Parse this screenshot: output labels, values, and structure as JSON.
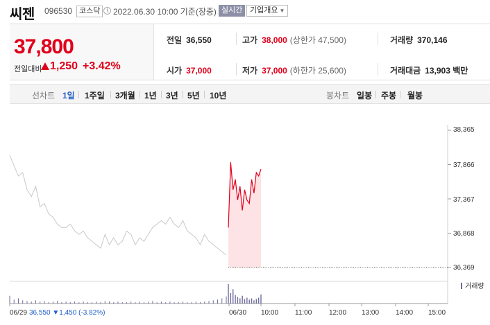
{
  "header": {
    "name": "씨젠",
    "code": "096530",
    "market": "코스닥",
    "timestamp": "2022.06.30 10:00 기준(장중)",
    "realtime_label": "실시간",
    "company_info_label": "기업개요"
  },
  "price": {
    "current": "37,800",
    "change_label": "전일대비",
    "change_value": "1,250",
    "change_rate": "+3.42%",
    "direction": "up"
  },
  "stats": {
    "prev_close": {
      "label": "전일",
      "value": "36,550"
    },
    "high": {
      "label": "고가",
      "value": "38,000",
      "sub": "(상한가 47,500)"
    },
    "volume": {
      "label": "거래량",
      "value": "370,146"
    },
    "open": {
      "label": "시가",
      "value": "37,000"
    },
    "low": {
      "label": "저가",
      "value": "37,000",
      "sub": "(하한가 25,600)"
    },
    "trade_amount": {
      "label": "거래대금",
      "value": "13,903 백만"
    }
  },
  "tabs": {
    "line_chart_label": "선차트",
    "line_periods": [
      "1일",
      "1주일",
      "3개월",
      "1년",
      "3년",
      "5년",
      "10년"
    ],
    "active_period": "1일",
    "candle_chart_label": "봉차트",
    "candle_periods": [
      "일봉",
      "주봉",
      "월봉"
    ]
  },
  "colors": {
    "up": "#e0001b",
    "down": "#1f5cc8",
    "prev_day_line": "#c8c8c8",
    "today_fill": "#fde3e6",
    "volume_bar": "#6d6b9c",
    "active_tab": "#2a62c8"
  },
  "chart_data": {
    "type": "line",
    "y_ticks": [
      "38,365",
      "37,866",
      "37,367",
      "36,868",
      "36,369"
    ],
    "ylim": [
      36369,
      38365
    ],
    "x_ticks": [
      "06/29",
      "06/30",
      "10:00",
      "11:00",
      "12:00",
      "13:00",
      "14:00",
      "15:00"
    ],
    "reference_price": 36550,
    "series": [
      {
        "name": "06/29",
        "values": [
          38000,
          37850,
          37700,
          37750,
          37500,
          37400,
          37550,
          37250,
          37300,
          37150,
          37100,
          37000,
          36950,
          36950,
          37000,
          36900,
          36850,
          36900,
          36800,
          36750,
          36700,
          36650,
          36850,
          36700,
          36800,
          36700,
          36750,
          36900,
          36850,
          36700,
          36800,
          36750,
          36850,
          36950,
          37000,
          37050,
          37000,
          37100,
          37000,
          36950,
          37050,
          36900,
          36850,
          36800,
          36700,
          36850,
          36750,
          36700,
          36650,
          36600,
          36550
        ]
      },
      {
        "name": "06/30",
        "values": [
          36950,
          37900,
          37500,
          37650,
          37350,
          37550,
          37200,
          37500,
          37350,
          37300,
          37650,
          37450,
          37750,
          37700,
          37800
        ]
      }
    ],
    "volume": {
      "label": "거래량",
      "prev_day": [
        1.2,
        0.6,
        0.8,
        0.5,
        0.4,
        0.3,
        0.5,
        0.3,
        0.4,
        0.2,
        0.3,
        0.4,
        0.2,
        0.3,
        0.2,
        0.3,
        0.2,
        0.3,
        0.2,
        0.2,
        0.3,
        0.2,
        0.4,
        0.3,
        0.2,
        0.3,
        0.2,
        0.2,
        0.3,
        0.2,
        0.3,
        0.2,
        0.3,
        0.4,
        0.2,
        0.3,
        0.2,
        0.3,
        0.2,
        0.2,
        0.3,
        0.2,
        0.2,
        0.3,
        0.2,
        0.3,
        0.4,
        0.5,
        0.6,
        0.8,
        1.1
      ],
      "today": [
        3.0,
        1.6,
        2.2,
        1.3,
        1.0,
        0.8,
        1.2,
        0.7,
        0.9,
        0.6,
        0.8,
        0.5,
        0.7,
        0.9,
        1.4
      ]
    }
  },
  "prev_day_info": {
    "date": "06/29",
    "close": "36,550",
    "change": "▼1,450",
    "rate": "(-3.82%)"
  }
}
